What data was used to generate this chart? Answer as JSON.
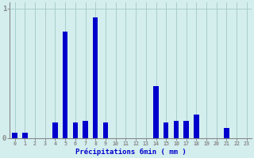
{
  "hours": [
    0,
    1,
    2,
    3,
    4,
    5,
    6,
    7,
    8,
    9,
    10,
    11,
    12,
    13,
    14,
    15,
    16,
    17,
    18,
    19,
    20,
    21,
    22,
    23
  ],
  "values": [
    0.04,
    0.04,
    0,
    0,
    0.12,
    0.82,
    0.12,
    0.13,
    0.93,
    0.12,
    0,
    0,
    0,
    0,
    0.4,
    0.12,
    0.13,
    0.13,
    0.18,
    0,
    0,
    0.08,
    0,
    0
  ],
  "bar_color": "#0000cc",
  "background_color": "#d4eeee",
  "grid_color": "#aacccc",
  "axis_color": "#888888",
  "text_color": "#0000cc",
  "xlabel": "Précipitations 6min ( mm )",
  "ylim": [
    0,
    1.05
  ],
  "yticks": [
    0,
    1
  ],
  "xlim": [
    -0.5,
    23.5
  ]
}
